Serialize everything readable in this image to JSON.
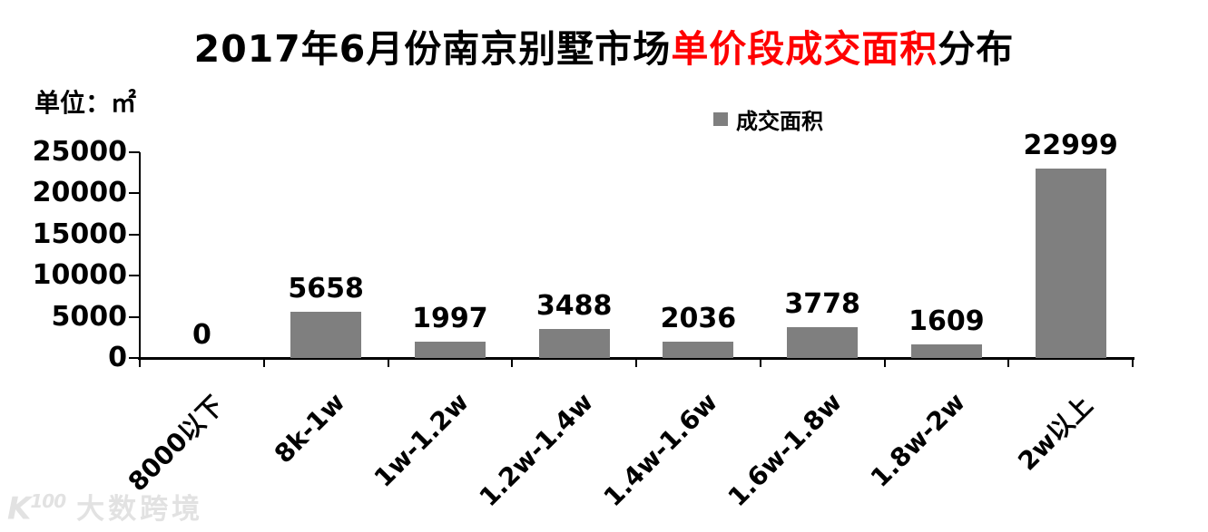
{
  "title": {
    "black_prefix": "2017年6月份南京别墅市场",
    "red_highlight": "单价段成交面积",
    "black_suffix": "分布",
    "highlight_color": "#ff0000"
  },
  "unit_label": "单位：㎡",
  "legend": {
    "label": "成交面积",
    "swatch_color": "#7f7f7f"
  },
  "watermark": {
    "logo_main": "K",
    "logo_sup": "100",
    "text": "大数跨境"
  },
  "chart_data": {
    "type": "bar",
    "title": "2017年6月份南京别墅市场单价段成交面积分布",
    "series_name": "成交面积",
    "unit": "㎡",
    "categories": [
      "8000以下",
      "8k-1w",
      "1w-1.2w",
      "1.2w-1.4w",
      "1.4w-1.6w",
      "1.6w-1.8w",
      "1.8w-2w",
      "2w以上"
    ],
    "values": [
      0,
      5658,
      1997,
      3488,
      2036,
      3778,
      1609,
      22999
    ],
    "xlabel": "",
    "ylabel": "",
    "ylim": [
      0,
      25000
    ],
    "yticks": [
      0,
      5000,
      10000,
      15000,
      20000,
      25000
    ],
    "bar_color": "#7f7f7f",
    "grid": false,
    "legend_position": "top-center",
    "data_labels": true,
    "x_label_rotation_deg": -45
  }
}
